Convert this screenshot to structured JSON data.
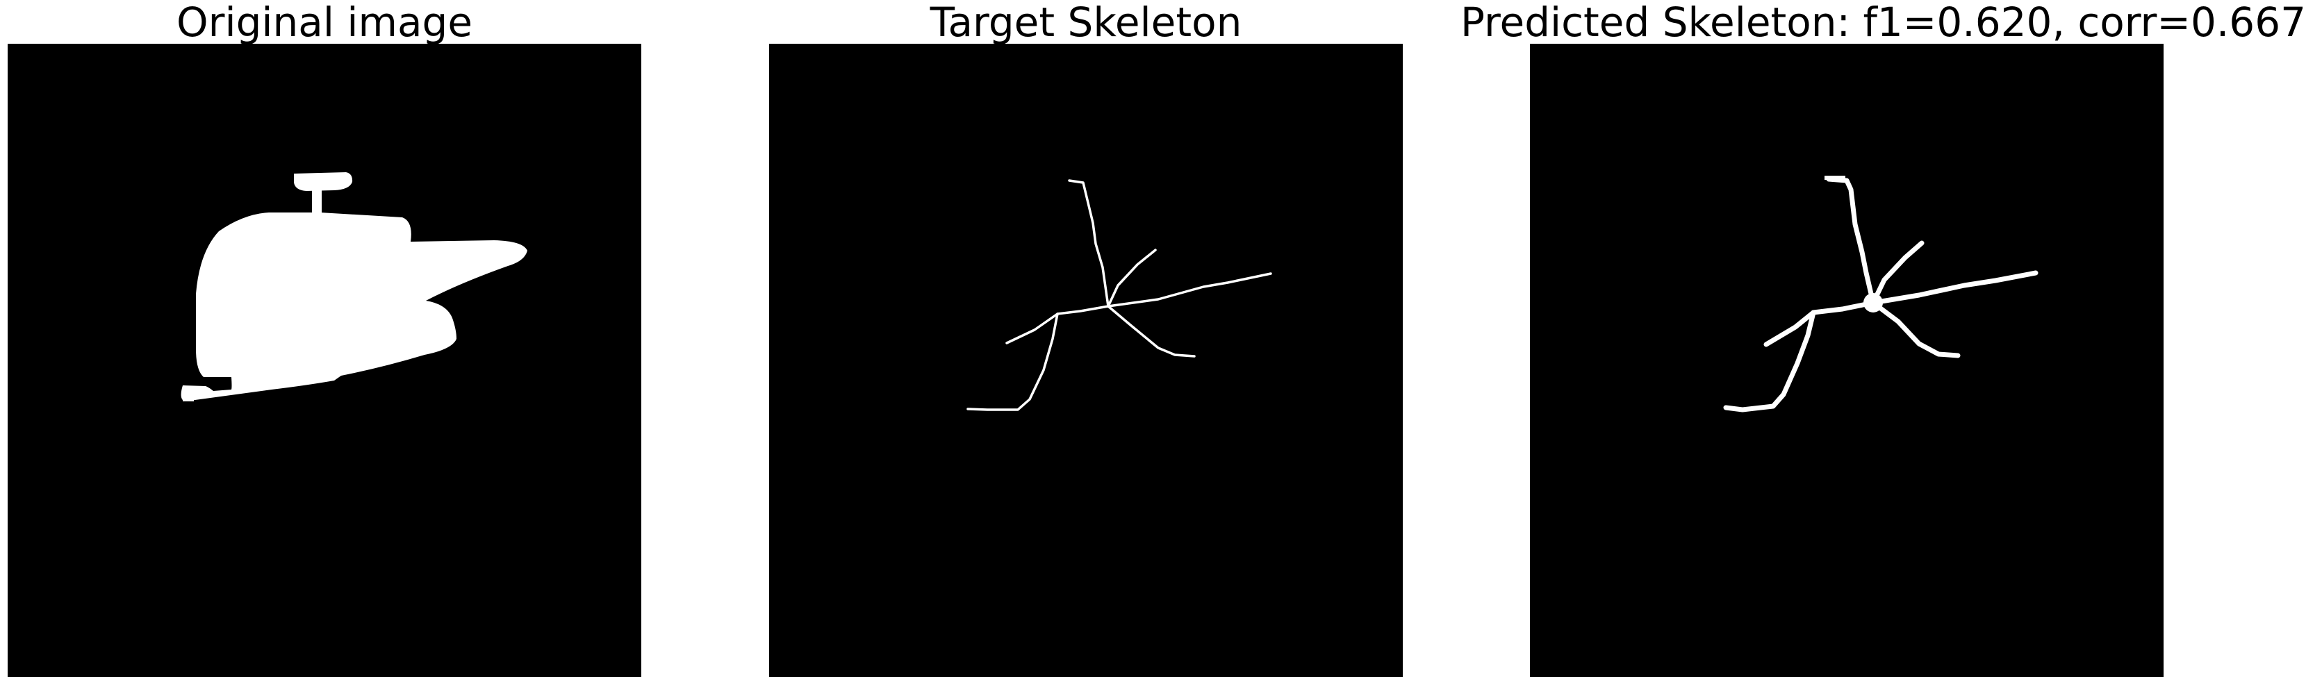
{
  "figure": {
    "panels": [
      {
        "title": "Original image",
        "content": "binary silhouette mask"
      },
      {
        "title": "Target Skeleton",
        "content": "thin skeleton lines"
      },
      {
        "title": "Predicted Skeleton: f1=0.620, corr=0.667",
        "content": "predicted skeleton lines"
      }
    ]
  },
  "metrics": {
    "f1": 0.62,
    "corr": 0.667
  },
  "colors": {
    "background": "#000000",
    "foreground": "#ffffff",
    "page": "#ffffff",
    "text": "#000000"
  }
}
